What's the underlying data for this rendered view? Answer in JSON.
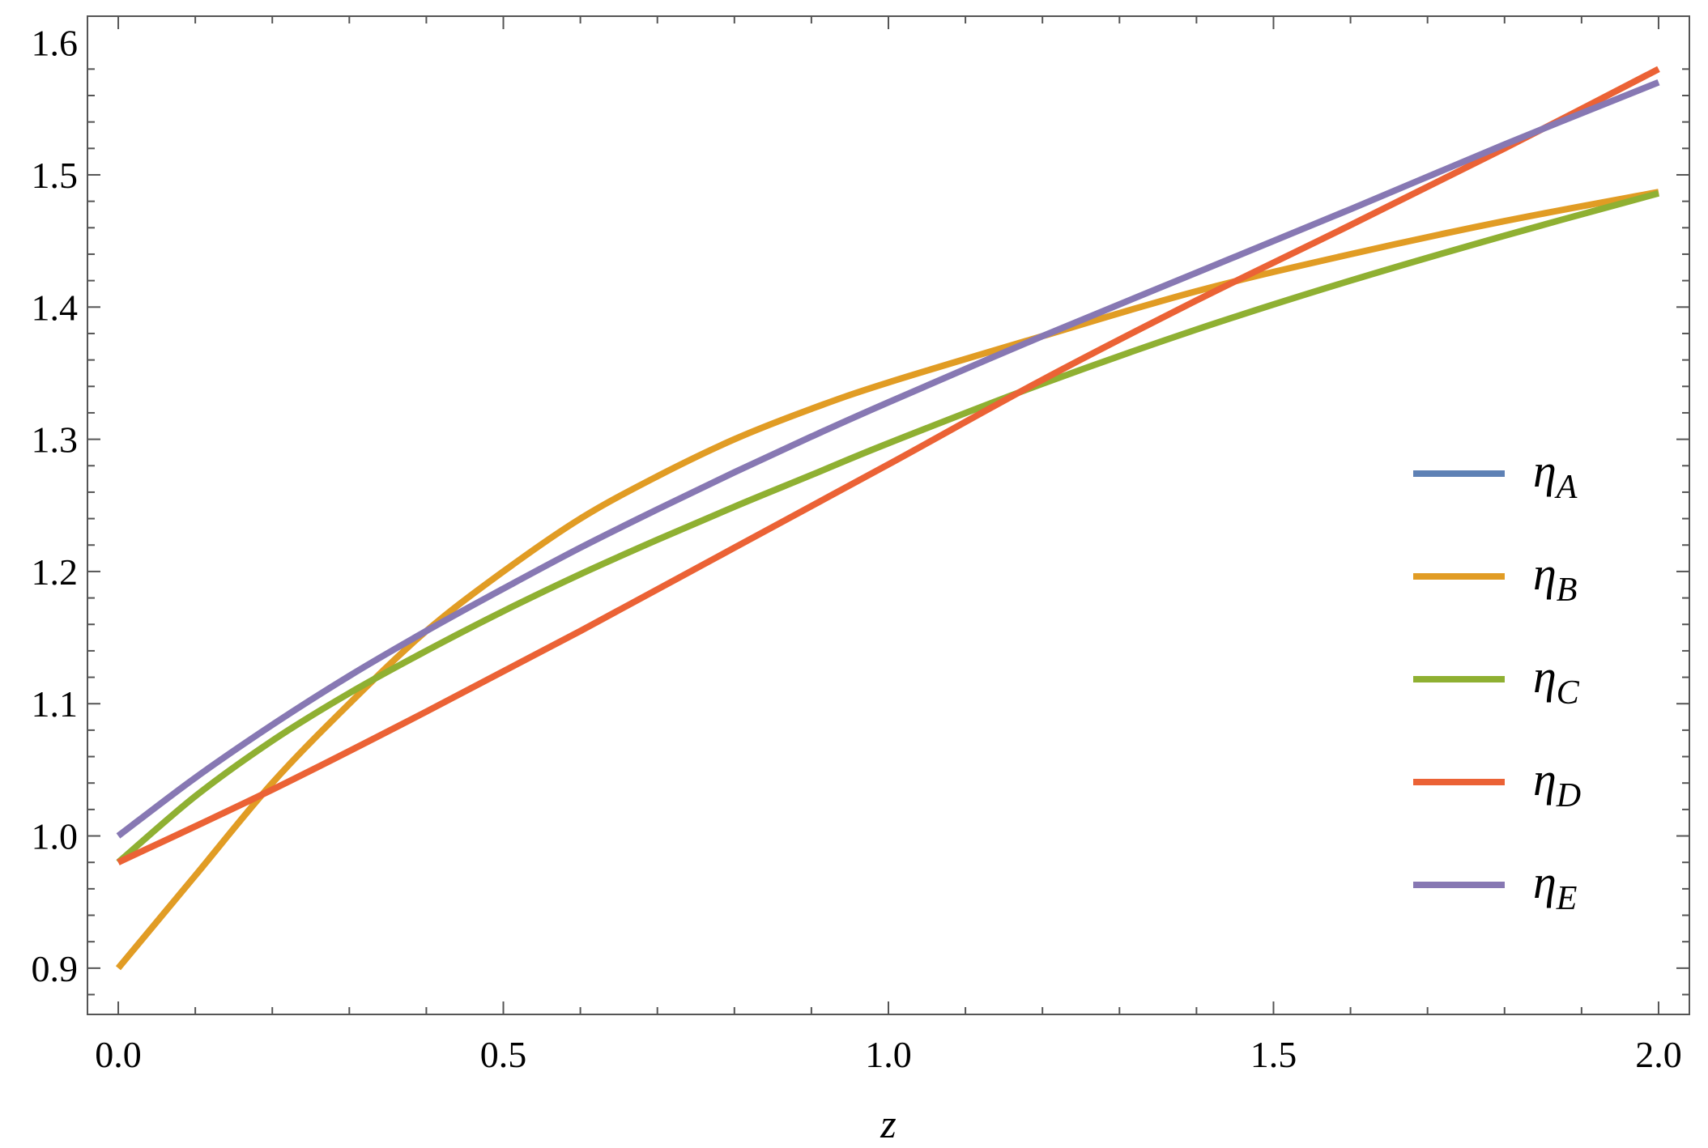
{
  "chart_data": {
    "type": "line",
    "title": "",
    "xlabel": "z",
    "ylabel": "",
    "xlim": [
      -0.04,
      2.04
    ],
    "ylim": [
      0.865,
      1.62
    ],
    "xticks": [
      0.0,
      0.5,
      1.0,
      1.5,
      2.0
    ],
    "xtick_labels": [
      "0.0",
      "0.5",
      "1.0",
      "1.5",
      "2.0"
    ],
    "yticks": [
      0.9,
      1.0,
      1.1,
      1.2,
      1.3,
      1.4,
      1.5,
      1.6
    ],
    "ytick_labels": [
      "0.9",
      "1.0",
      "1.1",
      "1.2",
      "1.3",
      "1.4",
      "1.5",
      "1.6"
    ],
    "grid": false,
    "legend_position": "right",
    "series": [
      {
        "name": "A",
        "color": "#5E81B5",
        "x": [],
        "y": []
      },
      {
        "name": "B",
        "color": "#E19C24",
        "x": [
          0.0,
          0.1,
          0.2,
          0.3,
          0.4,
          0.5,
          0.6,
          0.7,
          0.8,
          0.9,
          1.0,
          1.2,
          1.4,
          1.6,
          1.8,
          2.0
        ],
        "y": [
          0.9,
          0.97,
          1.04,
          1.1,
          1.155,
          1.2,
          1.24,
          1.272,
          1.3,
          1.323,
          1.343,
          1.378,
          1.412,
          1.44,
          1.465,
          1.487
        ]
      },
      {
        "name": "C",
        "color": "#8FB032",
        "x": [
          0.0,
          0.1,
          0.2,
          0.3,
          0.4,
          0.5,
          0.6,
          0.7,
          0.8,
          0.9,
          1.0,
          1.2,
          1.4,
          1.6,
          1.8,
          2.0
        ],
        "y": [
          0.98,
          1.03,
          1.072,
          1.108,
          1.14,
          1.17,
          1.198,
          1.224,
          1.249,
          1.273,
          1.297,
          1.342,
          1.383,
          1.42,
          1.454,
          1.486
        ]
      },
      {
        "name": "D",
        "color": "#EB6235",
        "x": [
          0.0,
          0.2,
          0.4,
          0.6,
          0.8,
          1.0,
          1.2,
          1.4,
          1.6,
          1.8,
          2.0
        ],
        "y": [
          0.98,
          1.035,
          1.094,
          1.155,
          1.218,
          1.281,
          1.345,
          1.405,
          1.462,
          1.52,
          1.58
        ]
      },
      {
        "name": "E",
        "color": "#8778B3",
        "x": [
          0.0,
          0.1,
          0.2,
          0.3,
          0.4,
          0.5,
          0.6,
          0.7,
          0.8,
          0.9,
          1.0,
          1.2,
          1.4,
          1.6,
          1.8,
          2.0
        ],
        "y": [
          1.0,
          1.044,
          1.084,
          1.121,
          1.155,
          1.187,
          1.218,
          1.247,
          1.275,
          1.302,
          1.328,
          1.378,
          1.426,
          1.474,
          1.523,
          1.57
        ]
      }
    ]
  }
}
